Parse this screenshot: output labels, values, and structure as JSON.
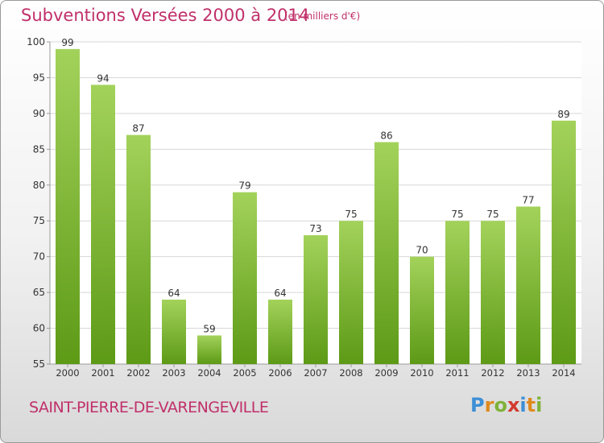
{
  "header": {
    "title": "Subventions Versées 2000 à 2014",
    "subtitle": "(en milliers d'€)"
  },
  "footer": {
    "commune": "SAINT-PIERRE-DE-VARENGEVILLE",
    "logo": "Proxiti"
  },
  "chart_data": {
    "type": "bar",
    "title": "Subventions Versées 2000 à 2014",
    "subtitle": "(en milliers d'€)",
    "categories": [
      "2000",
      "2001",
      "2002",
      "2003",
      "2004",
      "2005",
      "2006",
      "2007",
      "2008",
      "2009",
      "2010",
      "2011",
      "2012",
      "2013",
      "2014"
    ],
    "values": [
      99,
      94,
      87,
      64,
      59,
      79,
      64,
      73,
      75,
      86,
      70,
      75,
      75,
      77,
      89
    ],
    "ylim": [
      55,
      100
    ],
    "yticks": [
      55,
      60,
      65,
      70,
      75,
      80,
      85,
      90,
      95,
      100
    ],
    "grid": true,
    "colors": {
      "bar_top": "#a3d25b",
      "bar_bottom": "#5d9a16",
      "title": "#c0306a",
      "grid": "#d7d7d7",
      "axis": "#9a9a9a"
    }
  }
}
